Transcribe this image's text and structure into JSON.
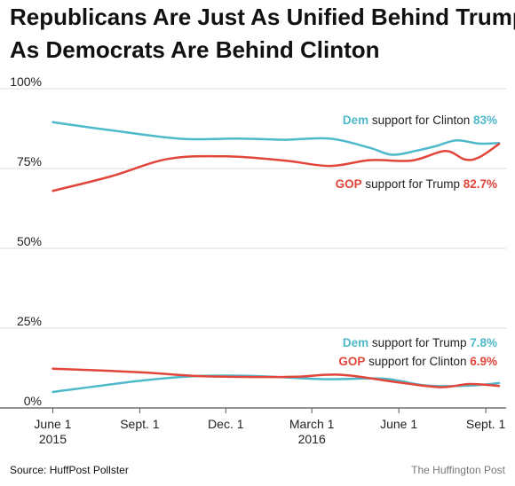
{
  "chart_data": {
    "type": "line",
    "title": [
      "Republicans Are Just As Unified Behind Trump",
      "As Democrats Are Behind Clinton"
    ],
    "xlabel": "",
    "ylabel": "",
    "ylim": [
      0,
      100
    ],
    "y_ticks": [
      {
        "value": 100,
        "label": "100%"
      },
      {
        "value": 75,
        "label": "75%"
      },
      {
        "value": 50,
        "label": "50%"
      },
      {
        "value": 25,
        "label": "25%"
      },
      {
        "value": 0,
        "label": "0%"
      }
    ],
    "x_range": [
      "2015-05-25",
      "2016-09-15"
    ],
    "x_ticks": [
      {
        "date": "2015-06-01",
        "label": "June 1",
        "sub": "2015"
      },
      {
        "date": "2015-09-01",
        "label": "Sept. 1",
        "sub": ""
      },
      {
        "date": "2015-12-01",
        "label": "Dec. 1",
        "sub": ""
      },
      {
        "date": "2016-03-01",
        "label": "March 1",
        "sub": "2016"
      },
      {
        "date": "2016-06-01",
        "label": "June 1",
        "sub": ""
      },
      {
        "date": "2016-09-01",
        "label": "Sept. 1",
        "sub": ""
      }
    ],
    "grid": true,
    "colors": {
      "dem": "#4eb9cb",
      "gop": "#e2453a"
    },
    "series": [
      {
        "party": "Dem",
        "rest": "support for Clinton",
        "value_label": "83%",
        "color": "#4eb9cb",
        "points": [
          [
            "2015-06-01",
            89.5
          ],
          [
            "2015-08-01",
            87
          ],
          [
            "2015-10-15",
            84.3
          ],
          [
            "2015-12-15",
            84.4
          ],
          [
            "2016-02-01",
            84.0
          ],
          [
            "2016-03-20",
            84.4
          ],
          [
            "2016-05-01",
            81.5
          ],
          [
            "2016-05-25",
            79.3
          ],
          [
            "2016-06-20",
            80.6
          ],
          [
            "2016-07-10",
            82.0
          ],
          [
            "2016-08-01",
            83.8
          ],
          [
            "2016-08-25",
            82.8
          ],
          [
            "2016-09-15",
            83.0
          ]
        ]
      },
      {
        "party": "GOP",
        "rest": "support for Trump",
        "value_label": "82.7%",
        "color": "#e2453a",
        "points": [
          [
            "2015-06-01",
            68.0
          ],
          [
            "2015-08-01",
            72.5
          ],
          [
            "2015-10-01",
            78.0
          ],
          [
            "2015-12-01",
            78.8
          ],
          [
            "2016-02-01",
            77.5
          ],
          [
            "2016-03-20",
            75.8
          ],
          [
            "2016-05-01",
            77.6
          ],
          [
            "2016-06-15",
            77.5
          ],
          [
            "2016-07-20",
            80.5
          ],
          [
            "2016-08-10",
            77.8
          ],
          [
            "2016-08-25",
            78.5
          ],
          [
            "2016-09-15",
            82.7
          ]
        ]
      },
      {
        "party": "Dem",
        "rest": "support for Trump",
        "value_label": "7.8%",
        "color": "#4eb9cb",
        "points": [
          [
            "2015-06-01",
            5.0
          ],
          [
            "2015-09-01",
            8.5
          ],
          [
            "2015-11-01",
            10.0
          ],
          [
            "2016-01-01",
            10.0
          ],
          [
            "2016-03-15",
            9.0
          ],
          [
            "2016-05-15",
            9.2
          ],
          [
            "2016-07-01",
            7.0
          ],
          [
            "2016-08-15",
            7.0
          ],
          [
            "2016-09-15",
            7.8
          ]
        ]
      },
      {
        "party": "GOP",
        "rest": "support for Clinton",
        "value_label": "6.9%",
        "color": "#e2453a",
        "points": [
          [
            "2015-06-01",
            12.3
          ],
          [
            "2015-09-01",
            11.2
          ],
          [
            "2015-11-01",
            10.0
          ],
          [
            "2016-01-01",
            9.7
          ],
          [
            "2016-02-15",
            9.8
          ],
          [
            "2016-04-01",
            10.4
          ],
          [
            "2016-06-01",
            8.0
          ],
          [
            "2016-07-15",
            6.5
          ],
          [
            "2016-08-15",
            7.5
          ],
          [
            "2016-09-15",
            6.9
          ]
        ]
      }
    ]
  },
  "footer": {
    "source": "Source: HuffPost Pollster",
    "brand": "The Huffington Post"
  }
}
